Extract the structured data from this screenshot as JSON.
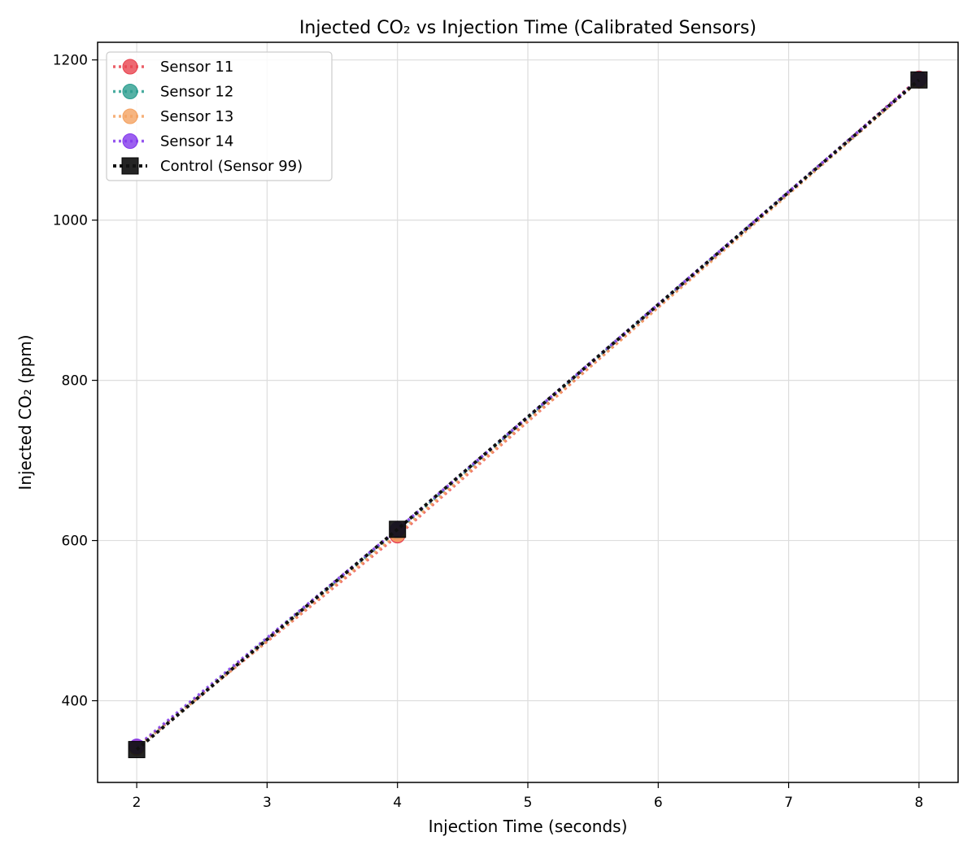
{
  "chart_data": {
    "type": "line",
    "title": "Injected CO₂ vs Injection Time (Calibrated Sensors)",
    "xlabel": "Injection Time (seconds)",
    "ylabel": "Injected CO₂ (ppm)",
    "xlim": [
      1.7,
      8.3
    ],
    "ylim": [
      298,
      1222
    ],
    "xticks": [
      2,
      3,
      4,
      5,
      6,
      7,
      8
    ],
    "yticks": [
      400,
      600,
      800,
      1000,
      1200
    ],
    "grid": true,
    "legend_position": "top-left",
    "series": [
      {
        "name": "Sensor 11",
        "color": "#e8444f",
        "marker": "circle",
        "line_style": "dotted",
        "x": [
          2,
          4,
          8
        ],
        "y": [
          342,
          606,
          1177
        ]
      },
      {
        "name": "Sensor 12",
        "color": "#2a9d8f",
        "marker": "circle",
        "line_style": "dotted",
        "x": [
          2,
          4,
          8
        ],
        "y": [
          341,
          612,
          1175
        ]
      },
      {
        "name": "Sensor 13",
        "color": "#f4a261",
        "marker": "circle",
        "line_style": "dotted",
        "x": [
          2,
          4,
          8
        ],
        "y": [
          341,
          608,
          1174
        ]
      },
      {
        "name": "Sensor 14",
        "color": "#8338ec",
        "marker": "circle",
        "line_style": "dotted",
        "x": [
          2,
          4,
          8
        ],
        "y": [
          343,
          614,
          1176
        ]
      },
      {
        "name": "Control (Sensor 99)",
        "color": "#111111",
        "marker": "square",
        "line_style": "dotted",
        "x": [
          2,
          4,
          8
        ],
        "y": [
          339,
          614,
          1175
        ]
      }
    ]
  }
}
